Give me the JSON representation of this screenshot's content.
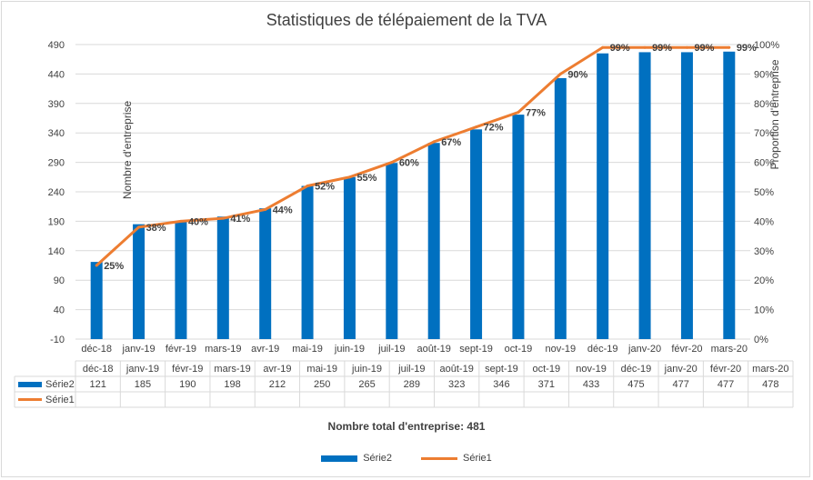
{
  "chart_data": {
    "type": "bar+line",
    "title": "Statistiques de télépaiement de la TVA",
    "categories": [
      "déc-18",
      "janv-19",
      "févr-19",
      "mars-19",
      "avr-19",
      "mai-19",
      "juin-19",
      "juil-19",
      "août-19",
      "sept-19",
      "oct-19",
      "nov-19",
      "déc-19",
      "janv-20",
      "févr-20",
      "mars-20"
    ],
    "table_categories": [
      "déc-18",
      "janv-19",
      "févr-19",
      "mars-19",
      "avr-19",
      "mai-19",
      "juin-19",
      "juil-19",
      "août-19",
      "sept-19",
      "oct-19",
      "nov-19",
      "déc-19",
      "janv-20",
      "févr-20",
      "mars-20"
    ],
    "series": [
      {
        "name": "Série2",
        "type": "bar",
        "axis": "left",
        "values": [
          121,
          185,
          190,
          198,
          212,
          250,
          265,
          289,
          323,
          346,
          371,
          433,
          475,
          477,
          477,
          478
        ]
      },
      {
        "name": "Série1",
        "type": "line",
        "axis": "right",
        "values": [
          25,
          38,
          40,
          41,
          44,
          52,
          55,
          60,
          67,
          72,
          77,
          90,
          99,
          99,
          99,
          99
        ],
        "labels": [
          "25%",
          "38%",
          "40%",
          "41%",
          "44%",
          "52%",
          "55%",
          "60%",
          "67%",
          "72%",
          "77%",
          "90%",
          "99%",
          "99%",
          "99%",
          "99%"
        ]
      }
    ],
    "ylabel": "Nombre d'entreprise",
    "y2label": "Proportion d'entreprise",
    "ylim": [
      -10,
      490
    ],
    "yticks": [
      "490",
      "440",
      "390",
      "340",
      "290",
      "240",
      "190",
      "140",
      "90",
      "40",
      "-10"
    ],
    "y2lim": [
      0,
      100
    ],
    "y2ticks": [
      "100%",
      "90%",
      "80%",
      "70%",
      "60%",
      "50%",
      "40%",
      "30%",
      "20%",
      "10%",
      "0%"
    ],
    "grid": "horizontal",
    "legend_position": "bottom",
    "colors": {
      "bar": "#0070c0",
      "line": "#ed7d31",
      "grid": "#d9d9d9",
      "text": "#404040"
    },
    "footnote": "Nombre total d'entreprise: 481"
  }
}
